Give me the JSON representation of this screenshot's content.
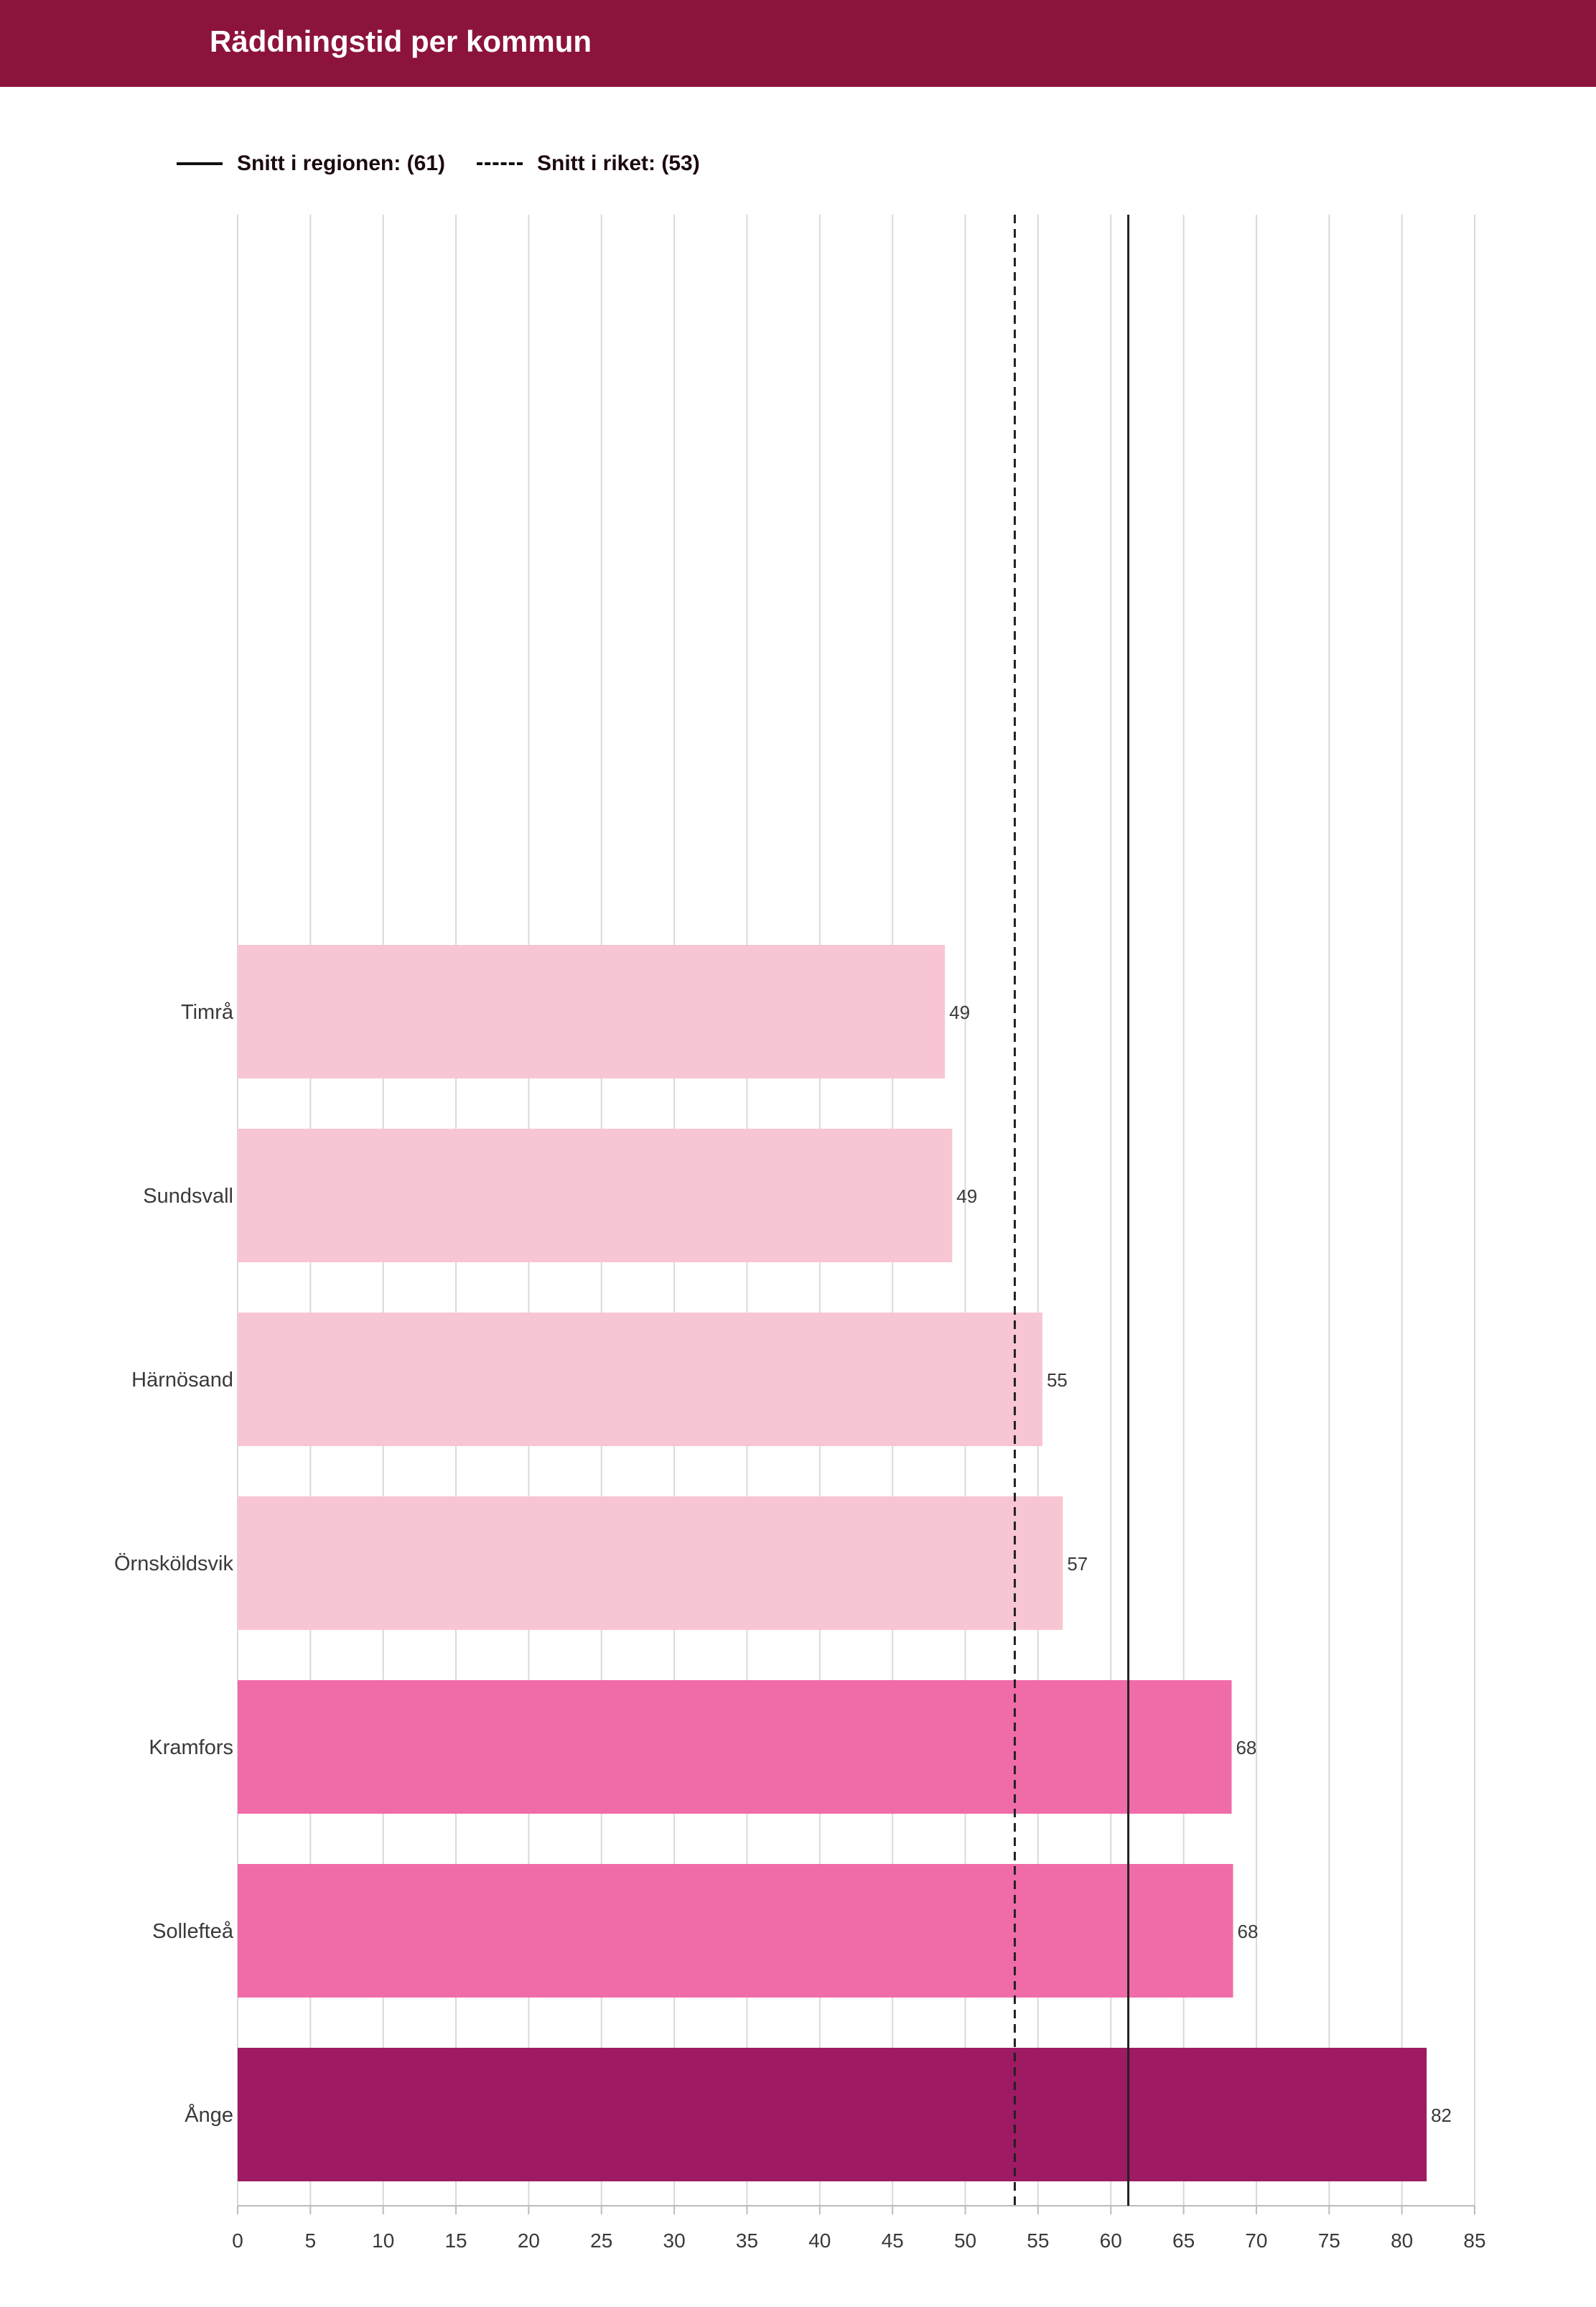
{
  "header": {
    "title": "Räddningstid per kommun"
  },
  "legend": {
    "regional": "Snitt i regionen: (61)",
    "national": "Snitt i riket: (53)"
  },
  "chart_data": {
    "type": "bar",
    "orientation": "horizontal",
    "title": "Räddningstid per kommun",
    "categories": [
      "Timrå",
      "Sundsvall",
      "Härnösand",
      "Örnsköldsvik",
      "Kramfors",
      "Sollefteå",
      "Ånge"
    ],
    "values": [
      48.6,
      49.1,
      55.3,
      56.7,
      68.3,
      68.4,
      81.7
    ],
    "value_labels": [
      "49",
      "49",
      "55",
      "57",
      "68",
      "68",
      "82"
    ],
    "bar_colors": [
      "#f8c6d2",
      "#f8c6d2",
      "#f8c6d2",
      "#f8c6d2",
      "#f06ca8",
      "#f06ca8",
      "#9e1a63"
    ],
    "xlim": [
      0,
      85
    ],
    "x_ticks": [
      0,
      5,
      10,
      15,
      20,
      25,
      30,
      35,
      40,
      45,
      50,
      55,
      60,
      65,
      70,
      75,
      80,
      85
    ],
    "reference_lines": [
      {
        "name": "Snitt i regionen",
        "value": 61.2,
        "style": "solid"
      },
      {
        "name": "Snitt i riket",
        "value": 53.4,
        "style": "dashed"
      }
    ],
    "grid": true,
    "legend_position": "top-left",
    "colors": {
      "grid": "#d9d9d9",
      "reference": "#222222",
      "label": "#3a3a3a"
    }
  }
}
